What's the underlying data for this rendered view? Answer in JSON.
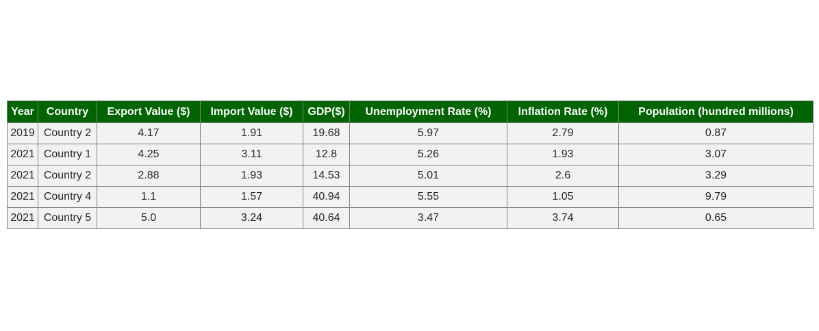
{
  "chart_data": {
    "type": "table",
    "columns": [
      "Year",
      "Country",
      "Export Value ($)",
      "Import Value ($)",
      "GDP($)",
      "Unemployment Rate (%)",
      "Inflation Rate (%)",
      "Population (hundred millions)"
    ],
    "rows": [
      [
        "2019",
        "Country 2",
        "4.17",
        "1.91",
        "19.68",
        "5.97",
        "2.79",
        "0.87"
      ],
      [
        "2021",
        "Country 1",
        "4.25",
        "3.11",
        "12.8",
        "5.26",
        "1.93",
        "3.07"
      ],
      [
        "2021",
        "Country 2",
        "2.88",
        "1.93",
        "14.53",
        "5.01",
        "2.6",
        "3.29"
      ],
      [
        "2021",
        "Country 4",
        "1.1",
        "1.57",
        "40.94",
        "5.55",
        "1.05",
        "9.79"
      ],
      [
        "2021",
        "Country 5",
        "5.0",
        "3.24",
        "40.64",
        "3.47",
        "3.74",
        "0.65"
      ]
    ]
  },
  "colors": {
    "header_bg": "#006400",
    "header_text": "#ffffff",
    "cell_bg": "#f2f2f2",
    "cell_text": "#262626",
    "border": "#808080"
  }
}
